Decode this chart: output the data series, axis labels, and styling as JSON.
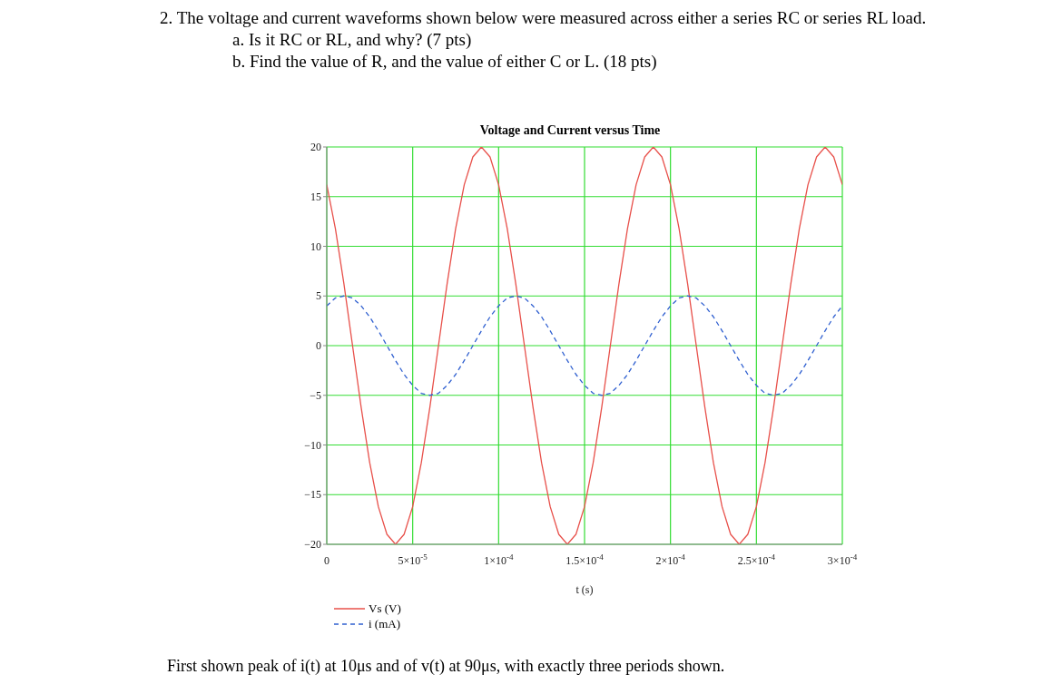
{
  "chart_data": {
    "type": "line",
    "title": "Voltage and Current versus Time",
    "xlabel": "t (s)",
    "annotations": [
      "2. The voltage and current waveforms shown below were measured across either a series RC or series RL load.",
      "a. Is it RC or RL, and why? (7 pts)",
      "b. Find the value of R, and the value of either C or L. (18 pts)",
      "First shown peak of i(t) at 10μs and of v(t) at 90μs, with exactly three periods shown."
    ],
    "x": [
      0,
      5e-06,
      1e-05,
      1.5e-05,
      2e-05,
      2.5e-05,
      3e-05,
      3.5e-05,
      4e-05,
      4.5e-05,
      5e-05,
      5.5e-05,
      6e-05,
      6.5e-05,
      7e-05,
      7.5e-05,
      8e-05,
      8.5e-05,
      9e-05,
      9.5e-05,
      0.0001,
      0.000105,
      0.00011,
      0.000115,
      0.00012,
      0.000125,
      0.00013,
      0.000135,
      0.00014,
      0.000145,
      0.00015,
      0.000155,
      0.00016,
      0.000165,
      0.00017,
      0.000175,
      0.00018,
      0.000185,
      0.00019,
      0.000195,
      0.0002,
      0.000205,
      0.00021,
      0.000215,
      0.00022,
      0.000225,
      0.00023,
      0.000235,
      0.00024,
      0.000245,
      0.00025,
      0.000255,
      0.00026,
      0.000265,
      0.00027,
      0.000275,
      0.00028,
      0.000285,
      0.00029,
      0.000295,
      0.0003
    ],
    "series": [
      {
        "name": "Vs (V)",
        "color": "#e8504a",
        "line_style": "solid",
        "values": [
          16.2,
          11.8,
          6.2,
          0,
          -6.2,
          -11.8,
          -16.2,
          -19,
          -20,
          -19,
          -16.2,
          -11.8,
          -6.2,
          0,
          6.2,
          11.8,
          16.2,
          19,
          20,
          19,
          16.2,
          11.8,
          6.2,
          0,
          -6.2,
          -11.8,
          -16.2,
          -19,
          -20,
          -19,
          -16.2,
          -11.8,
          -6.2,
          0,
          6.2,
          11.8,
          16.2,
          19,
          20,
          19,
          16.2,
          11.8,
          6.2,
          0,
          -6.2,
          -11.8,
          -16.2,
          -19,
          -20,
          -19,
          -16.2,
          -11.8,
          -6.2,
          0,
          6.2,
          11.8,
          16.2,
          19,
          20,
          19,
          16.2
        ]
      },
      {
        "name": "i (mA)",
        "color": "#3060d0",
        "line_style": "dashed",
        "values": [
          4,
          4.8,
          5,
          4.8,
          4,
          2.9,
          1.5,
          0,
          -1.5,
          -2.9,
          -4,
          -4.8,
          -5,
          -4.8,
          -4,
          -2.9,
          -1.5,
          0,
          1.5,
          2.9,
          4,
          4.8,
          5,
          4.8,
          4,
          2.9,
          1.5,
          0,
          -1.5,
          -2.9,
          -4,
          -4.8,
          -5,
          -4.8,
          -4,
          -2.9,
          -1.5,
          0,
          1.5,
          2.9,
          4,
          4.8,
          5,
          4.8,
          4,
          2.9,
          1.5,
          0,
          -1.5,
          -2.9,
          -4,
          -4.8,
          -5,
          -4.8,
          -4,
          -2.9,
          -1.5,
          0,
          1.5,
          2.9,
          4
        ]
      }
    ],
    "xlim": [
      0,
      0.0003
    ],
    "xticks": [
      0,
      {
        "value": 5e-05,
        "label": "5×10$^{-5}$"
      },
      {
        "value": 0.0001,
        "label": "1×10$^{-4}$"
      },
      {
        "value": 0.00015,
        "label": "1.5×10$^{-4}$"
      },
      {
        "value": 0.0002,
        "label": "2×10$^{-4}$"
      },
      {
        "value": 0.00025,
        "label": "2.5×10$^{-4}$"
      },
      {
        "value": 0.0003,
        "label": "3×10$^{-4}$"
      }
    ],
    "ylim": [
      -20,
      20
    ],
    "yticks": [
      {
        "value": -20,
        "label": "−20"
      },
      {
        "value": -15,
        "label": "−15"
      },
      {
        "value": -10,
        "label": "−10"
      },
      {
        "value": -5,
        "label": "−5"
      },
      0,
      5,
      10,
      15,
      20
    ],
    "grid": true,
    "legend": "bottom left"
  }
}
